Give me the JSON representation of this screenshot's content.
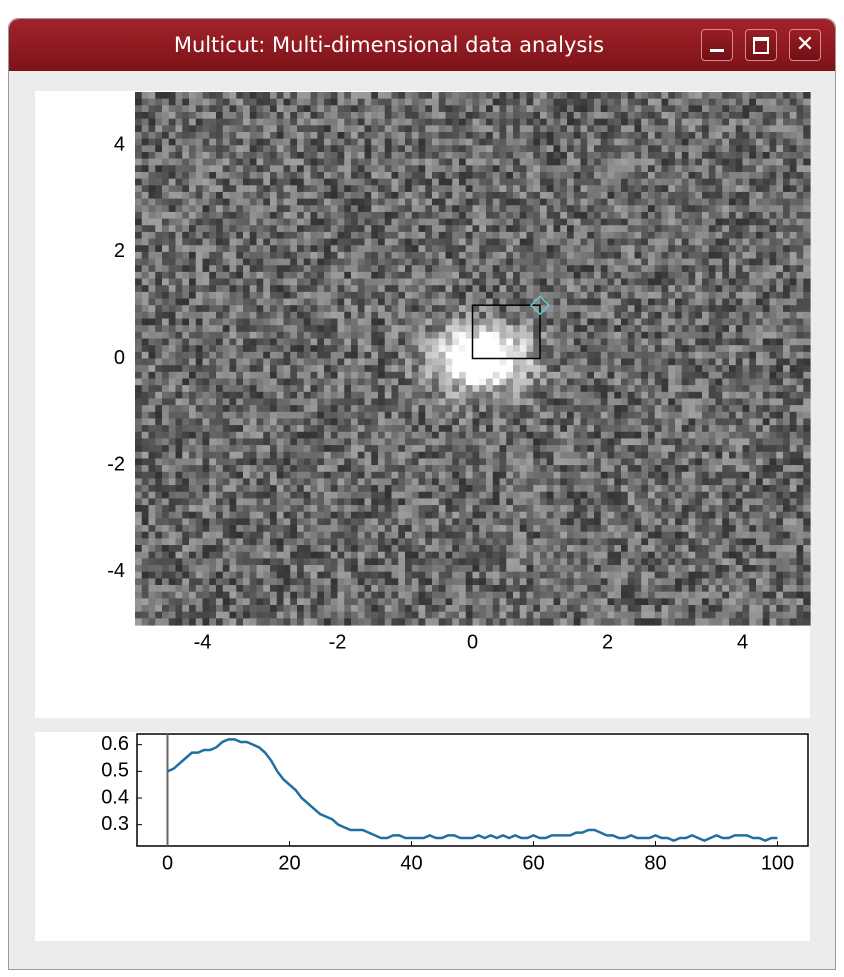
{
  "window": {
    "title": "Multicut: Multi-dimensional data analysis"
  },
  "chart_data": [
    {
      "type": "image",
      "xlim": [
        -5,
        5
      ],
      "ylim": [
        -5,
        5
      ],
      "xticks": [
        -4,
        -2,
        0,
        2,
        4
      ],
      "yticks": [
        4,
        2,
        0,
        -2,
        -4
      ],
      "selection": {
        "x": [
          0,
          1
        ],
        "y": [
          0,
          1
        ],
        "color": "#000000",
        "handle_color": "#5fc8d0"
      }
    },
    {
      "type": "line",
      "xlim": [
        -5,
        105
      ],
      "ylim": [
        0.22,
        0.64
      ],
      "xticks": [
        0,
        20,
        40,
        60,
        80,
        100
      ],
      "yticks": [
        0.6,
        0.5,
        0.4,
        0.3
      ],
      "cursor_x": 0,
      "cursor_color": "#666666",
      "x": [
        0,
        1,
        2,
        3,
        4,
        5,
        6,
        7,
        8,
        9,
        10,
        11,
        12,
        13,
        14,
        15,
        16,
        17,
        18,
        19,
        20,
        21,
        22,
        23,
        24,
        25,
        26,
        27,
        28,
        29,
        30,
        31,
        32,
        33,
        34,
        35,
        36,
        37,
        38,
        39,
        40,
        41,
        42,
        43,
        44,
        45,
        46,
        47,
        48,
        49,
        50,
        51,
        52,
        53,
        54,
        55,
        56,
        57,
        58,
        59,
        60,
        61,
        62,
        63,
        64,
        65,
        66,
        67,
        68,
        69,
        70,
        71,
        72,
        73,
        74,
        75,
        76,
        77,
        78,
        79,
        80,
        81,
        82,
        83,
        84,
        85,
        86,
        87,
        88,
        89,
        90,
        91,
        92,
        93,
        94,
        95,
        96,
        97,
        98,
        99,
        100
      ],
      "series": [
        {
          "color": "#1f6fa0",
          "values": [
            0.5,
            0.51,
            0.53,
            0.55,
            0.57,
            0.57,
            0.58,
            0.58,
            0.59,
            0.61,
            0.62,
            0.62,
            0.61,
            0.61,
            0.6,
            0.59,
            0.57,
            0.54,
            0.5,
            0.47,
            0.45,
            0.43,
            0.4,
            0.38,
            0.36,
            0.34,
            0.33,
            0.32,
            0.3,
            0.29,
            0.28,
            0.28,
            0.28,
            0.27,
            0.26,
            0.25,
            0.25,
            0.26,
            0.26,
            0.25,
            0.25,
            0.25,
            0.25,
            0.26,
            0.25,
            0.25,
            0.26,
            0.26,
            0.25,
            0.25,
            0.25,
            0.26,
            0.25,
            0.26,
            0.25,
            0.26,
            0.25,
            0.26,
            0.25,
            0.25,
            0.26,
            0.25,
            0.25,
            0.26,
            0.26,
            0.26,
            0.26,
            0.27,
            0.27,
            0.28,
            0.28,
            0.27,
            0.26,
            0.26,
            0.25,
            0.25,
            0.26,
            0.25,
            0.25,
            0.25,
            0.26,
            0.25,
            0.25,
            0.24,
            0.25,
            0.25,
            0.26,
            0.25,
            0.24,
            0.25,
            0.26,
            0.25,
            0.25,
            0.26,
            0.26,
            0.26,
            0.25,
            0.25,
            0.24,
            0.25,
            0.25
          ]
        }
      ]
    }
  ]
}
